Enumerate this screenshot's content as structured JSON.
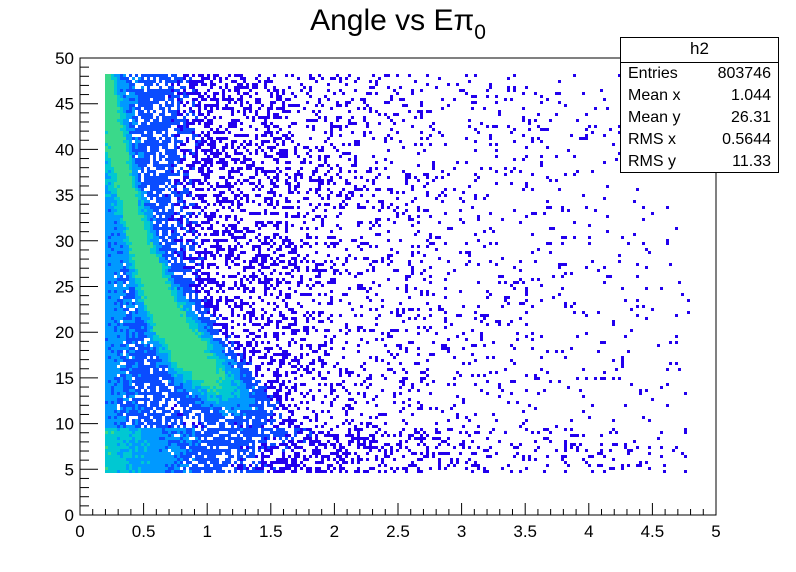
{
  "chart_data": {
    "type": "heatmap",
    "title": "Angle vs Eπ",
    "title_subscript": "0",
    "xlabel": "",
    "ylabel": "",
    "xlim": [
      0,
      5
    ],
    "ylim": [
      0,
      50
    ],
    "x_ticks": [
      "0",
      "0.5",
      "1",
      "1.5",
      "2",
      "2.5",
      "3",
      "3.5",
      "4",
      "4.5",
      "5"
    ],
    "y_ticks": [
      "0",
      "5",
      "10",
      "15",
      "20",
      "25",
      "30",
      "35",
      "40",
      "45",
      "50"
    ],
    "x_tick_values": [
      0,
      0.5,
      1,
      1.5,
      2,
      2.5,
      3,
      3.5,
      4,
      4.5,
      5
    ],
    "y_tick_values": [
      0,
      5,
      10,
      15,
      20,
      25,
      30,
      35,
      40,
      45,
      50
    ],
    "data_x_range": [
      0.2,
      4.8
    ],
    "data_y_range": [
      4.7,
      48.3
    ],
    "density_ridge": [
      {
        "x": 0.3,
        "y": 40
      },
      {
        "x": 0.45,
        "y": 30
      },
      {
        "x": 0.6,
        "y": 24
      },
      {
        "x": 0.75,
        "y": 20
      },
      {
        "x": 1.0,
        "y": 16
      },
      {
        "x": 1.3,
        "y": 13
      },
      {
        "x": 1.7,
        "y": 10
      },
      {
        "x": 2.2,
        "y": 8
      },
      {
        "x": 3.0,
        "y": 6.5
      }
    ],
    "palette": [
      "#2200ee",
      "#0a4cff",
      "#0099ff",
      "#00c8d2",
      "#3ad98a"
    ],
    "stats": {
      "name": "h2",
      "rows": [
        {
          "label": "Entries",
          "value": "803746"
        },
        {
          "label": "Mean x",
          "value": "1.044"
        },
        {
          "label": "Mean y",
          "value": "26.31"
        },
        {
          "label": "RMS x",
          "value": "0.5644"
        },
        {
          "label": "RMS y",
          "value": "11.33"
        }
      ]
    }
  }
}
